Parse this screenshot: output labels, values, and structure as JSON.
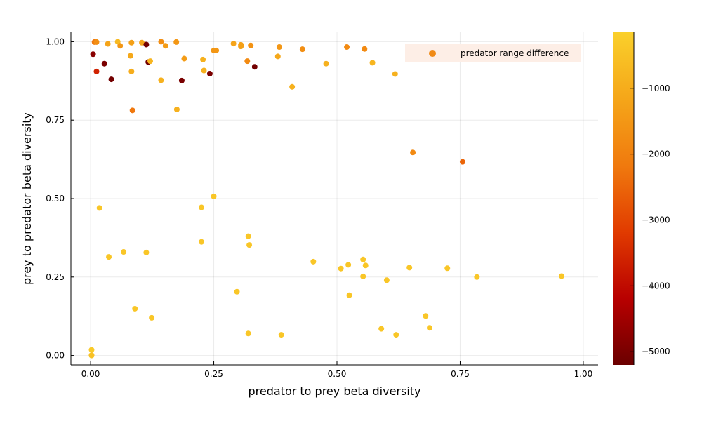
{
  "chart_data": {
    "type": "scatter",
    "xlabel": "predator to prey beta diversity",
    "ylabel": "prey to predator beta diversity",
    "xlim": [
      -0.04,
      1.03
    ],
    "ylim": [
      -0.03,
      1.03
    ],
    "x_ticks": [
      0.0,
      0.25,
      0.5,
      0.75,
      1.0
    ],
    "x_tick_labels": [
      "0.00",
      "0.25",
      "0.50",
      "0.75",
      "1.00"
    ],
    "y_ticks": [
      0.0,
      0.25,
      0.5,
      0.75,
      1.0
    ],
    "y_tick_labels": [
      "0.00",
      "0.25",
      "0.50",
      "0.75",
      "1.00"
    ],
    "grid": true,
    "legend": {
      "position": "top-right",
      "entries": [
        "predator range difference"
      ],
      "marker_color": "#f08a16",
      "background": "#fdeee6"
    },
    "colorbar": {
      "label": "",
      "range": [
        -5200,
        -150
      ],
      "ticks": [
        -1000,
        -2000,
        -3000,
        -4000,
        -5000
      ],
      "tick_labels": [
        "−1000",
        "−2000",
        "−3000",
        "−4000",
        "−5000"
      ],
      "colormap": [
        "#6b0000",
        "#b80000",
        "#e13b00",
        "#f07a0e",
        "#f5a619",
        "#fad02b"
      ]
    },
    "series": [
      {
        "points": [
          [
            0.002,
            0.0,
            -300
          ],
          [
            0.002,
            0.018,
            -300
          ],
          [
            0.002,
            0.001,
            -500
          ],
          [
            0.005,
            0.96,
            -4800
          ],
          [
            0.008,
            0.999,
            -2200
          ],
          [
            0.012,
            0.999,
            -1700
          ],
          [
            0.012,
            0.905,
            -3600
          ],
          [
            0.028,
            0.93,
            -5000
          ],
          [
            0.035,
            0.993,
            -1200
          ],
          [
            0.042,
            0.88,
            -5100
          ],
          [
            0.055,
            1.0,
            -700
          ],
          [
            0.06,
            0.987,
            -1500
          ],
          [
            0.081,
            0.955,
            -1100
          ],
          [
            0.083,
            0.997,
            -1300
          ],
          [
            0.083,
            0.905,
            -1000
          ],
          [
            0.085,
            0.781,
            -2200
          ],
          [
            0.104,
            0.997,
            -1200
          ],
          [
            0.113,
            0.991,
            -5100
          ],
          [
            0.117,
            0.935,
            -5100
          ],
          [
            0.121,
            0.938,
            -800
          ],
          [
            0.143,
            1.0,
            -1700
          ],
          [
            0.143,
            0.877,
            -900
          ],
          [
            0.152,
            0.987,
            -1400
          ],
          [
            0.174,
            0.999,
            -1500
          ],
          [
            0.175,
            0.784,
            -900
          ],
          [
            0.185,
            0.876,
            -5000
          ],
          [
            0.19,
            0.946,
            -1400
          ],
          [
            0.228,
            0.943,
            -900
          ],
          [
            0.23,
            0.908,
            -900
          ],
          [
            0.242,
            0.898,
            -5000
          ],
          [
            0.25,
            0.972,
            -1500
          ],
          [
            0.255,
            0.972,
            -1500
          ],
          [
            0.29,
            0.994,
            -1200
          ],
          [
            0.305,
            0.99,
            -1300
          ],
          [
            0.305,
            0.985,
            -1300
          ],
          [
            0.318,
            0.938,
            -1800
          ],
          [
            0.325,
            0.988,
            -1600
          ],
          [
            0.333,
            0.92,
            -5100
          ],
          [
            0.38,
            0.953,
            -1100
          ],
          [
            0.383,
            0.983,
            -1500
          ],
          [
            0.409,
            0.856,
            -900
          ],
          [
            0.43,
            0.976,
            -1700
          ],
          [
            0.478,
            0.93,
            -900
          ],
          [
            0.52,
            0.983,
            -1800
          ],
          [
            0.556,
            0.977,
            -1800
          ],
          [
            0.572,
            0.933,
            -800
          ],
          [
            0.618,
            0.897,
            -900
          ],
          [
            0.654,
            0.647,
            -1800
          ],
          [
            0.755,
            0.617,
            -2500
          ],
          [
            0.018,
            0.47,
            -400
          ],
          [
            0.037,
            0.314,
            -400
          ],
          [
            0.067,
            0.33,
            -400
          ],
          [
            0.09,
            0.149,
            -400
          ],
          [
            0.113,
            0.328,
            -400
          ],
          [
            0.124,
            0.12,
            -400
          ],
          [
            0.225,
            0.472,
            -400
          ],
          [
            0.225,
            0.362,
            -400
          ],
          [
            0.25,
            0.507,
            -400
          ],
          [
            0.297,
            0.203,
            -400
          ],
          [
            0.32,
            0.38,
            -400
          ],
          [
            0.322,
            0.352,
            -400
          ],
          [
            0.32,
            0.07,
            -400
          ],
          [
            0.387,
            0.066,
            -400
          ],
          [
            0.452,
            0.299,
            -400
          ],
          [
            0.508,
            0.277,
            -400
          ],
          [
            0.523,
            0.289,
            -400
          ],
          [
            0.525,
            0.192,
            -400
          ],
          [
            0.553,
            0.306,
            -400
          ],
          [
            0.553,
            0.252,
            -400
          ],
          [
            0.558,
            0.287,
            -400
          ],
          [
            0.59,
            0.085,
            -400
          ],
          [
            0.601,
            0.24,
            -400
          ],
          [
            0.62,
            0.066,
            -400
          ],
          [
            0.647,
            0.28,
            -400
          ],
          [
            0.68,
            0.126,
            -400
          ],
          [
            0.688,
            0.088,
            -400
          ],
          [
            0.724,
            0.278,
            -400
          ],
          [
            0.784,
            0.25,
            -400
          ],
          [
            0.956,
            0.253,
            -400
          ]
        ]
      }
    ]
  }
}
